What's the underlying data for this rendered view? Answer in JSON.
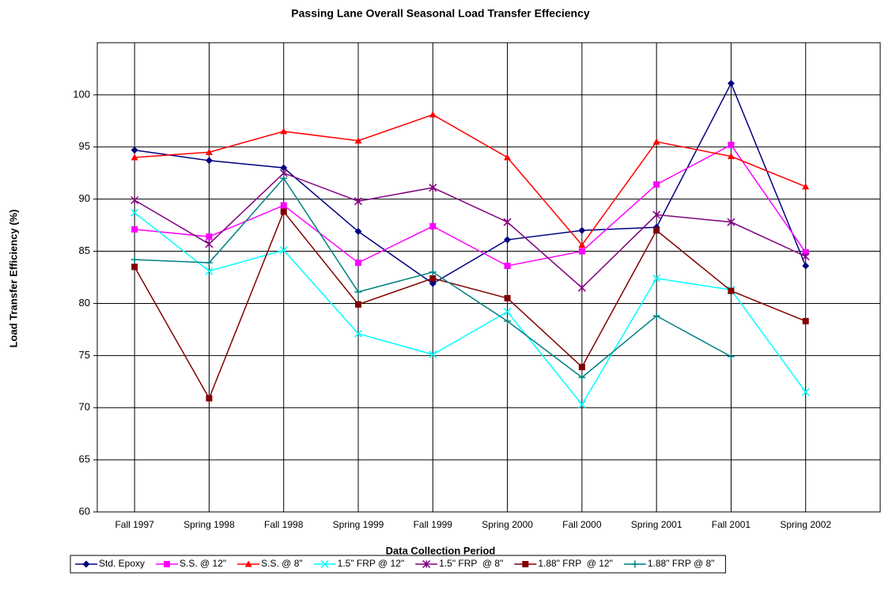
{
  "chart_data": {
    "type": "line",
    "title": "Passing Lane Overall Seasonal Load Transfer Effeciency",
    "x_label": "Data Collection Period",
    "y_label": "Load Transfer Efficiency (%)",
    "categories": [
      "Fall 1997",
      "Spring 1998",
      "Fall 1998",
      "Spring 1999",
      "Fall 1999",
      "Spring 2000",
      "Fall 2000",
      "Spring 2001",
      "Fall 2001",
      "Spring 2002"
    ],
    "ylim": [
      60,
      105
    ],
    "yticks": [
      60,
      65,
      70,
      75,
      80,
      85,
      90,
      95,
      100
    ],
    "grid": true,
    "legend": "bottom",
    "series": [
      {
        "name": "Std. Epoxy",
        "color": "#000080",
        "marker": "diamond",
        "values": [
          94.7,
          93.7,
          93.0,
          86.9,
          81.9,
          86.1,
          87.0,
          87.3,
          101.1,
          83.6
        ]
      },
      {
        "name": "S.S. @ 12\"",
        "color": "#ff00ff",
        "marker": "square",
        "values": [
          87.1,
          86.4,
          89.4,
          83.9,
          87.4,
          83.6,
          85.0,
          91.4,
          95.2,
          84.9
        ]
      },
      {
        "name": "S.S. @ 8\"",
        "color": "#ff0000",
        "marker": "triangle",
        "values": [
          94.0,
          94.5,
          96.5,
          95.6,
          98.1,
          94.0,
          85.6,
          95.5,
          94.1,
          91.2
        ]
      },
      {
        "name": "1.5\" FRP @ 12\"",
        "color": "#00ffff",
        "marker": "x",
        "values": [
          88.7,
          83.1,
          85.1,
          77.1,
          75.1,
          79.2,
          70.3,
          82.4,
          81.3,
          71.5
        ]
      },
      {
        "name": "1.5\" FRP  @ 8\"",
        "color": "#800080",
        "marker": "star",
        "values": [
          89.9,
          85.7,
          92.5,
          89.8,
          91.1,
          87.8,
          81.5,
          88.5,
          87.8,
          84.5
        ]
      },
      {
        "name": "1.88\" FRP  @ 12\"",
        "color": "#800000",
        "marker": "square",
        "values": [
          83.5,
          70.9,
          88.8,
          79.9,
          82.4,
          80.5,
          73.9,
          87.0,
          81.2,
          78.3
        ]
      },
      {
        "name": "1.88\" FRP @ 8\"",
        "color": "#008080",
        "marker": "plus",
        "values": [
          84.2,
          83.9,
          92.0,
          81.1,
          83.0,
          78.3,
          72.9,
          78.8,
          74.9,
          null
        ]
      }
    ]
  }
}
